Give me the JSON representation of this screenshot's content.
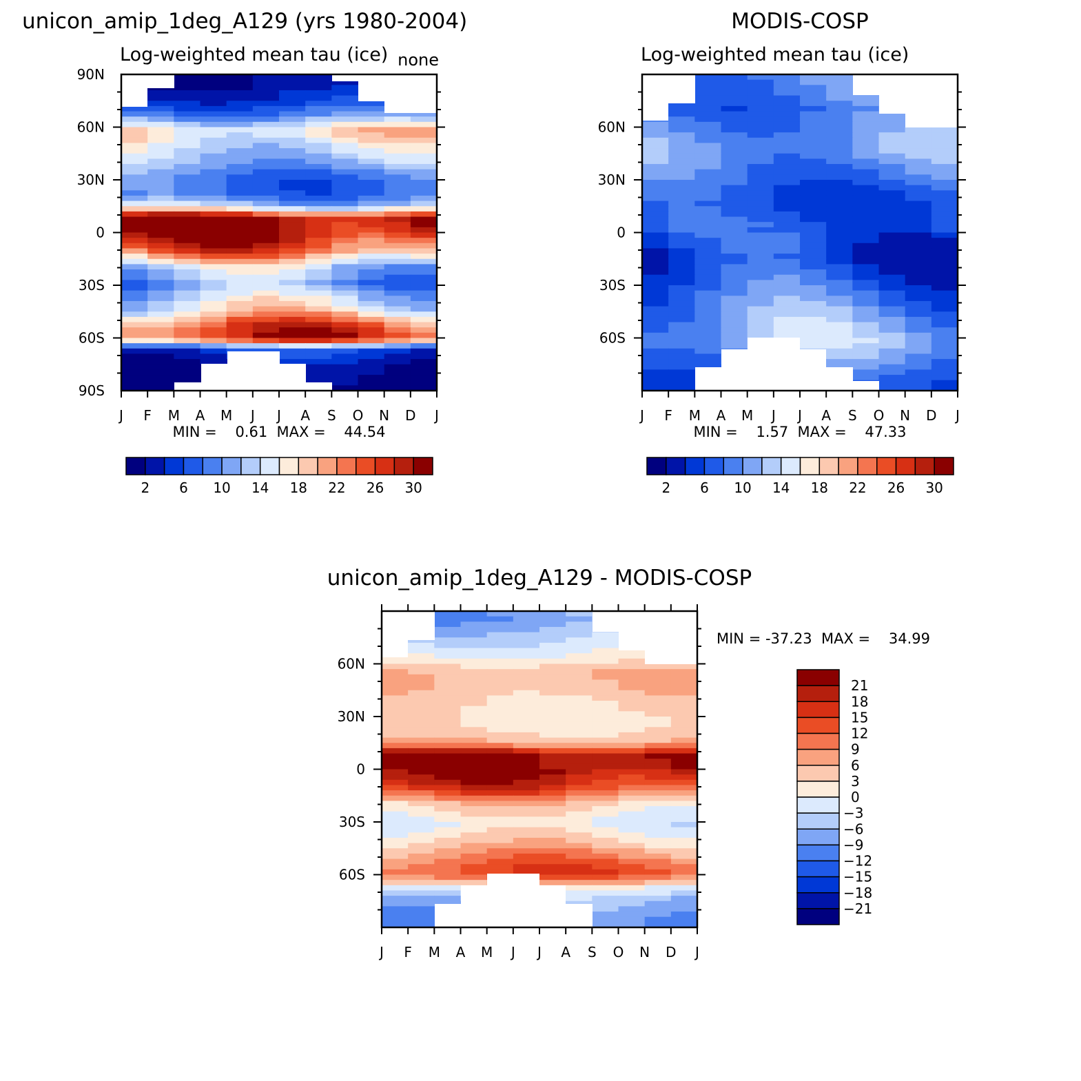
{
  "panels": {
    "model": {
      "title": "unicon_amip_1deg_A129 (yrs 1980-2004)",
      "subtitle": "Log-weighted mean tau (ice)",
      "corner_label": "none",
      "stats": "MIN =    0.61  MAX =    44.54"
    },
    "obs": {
      "title": "MODIS-COSP",
      "subtitle": "Log-weighted mean tau (ice)",
      "stats": "MIN =    1.57  MAX =    47.33"
    },
    "diff": {
      "title": "unicon_amip_1deg_A129 - MODIS-COSP",
      "stats": "MIN = -37.23  MAX =    34.99"
    }
  },
  "chart_data": [
    {
      "id": "model",
      "type": "heatmap",
      "title": "unicon_amip_1deg_A129 (yrs 1980-2004)",
      "subtitle": "Log-weighted mean tau (ice)",
      "x_ticks": [
        "J",
        "F",
        "M",
        "A",
        "M",
        "J",
        "J",
        "A",
        "S",
        "O",
        "N",
        "D",
        "J"
      ],
      "y_ticks": [
        "90N",
        "60N",
        "30N",
        "0",
        "30S",
        "60S",
        "90S"
      ],
      "ylim": [
        -90,
        90
      ],
      "min": 0.61,
      "max": 44.54,
      "legend": {
        "orientation": "horizontal",
        "labels": [
          "2",
          "6",
          "10",
          "14",
          "18",
          "22",
          "26",
          "30"
        ],
        "colors": [
          "#00007f",
          "#0014a8",
          "#0038d6",
          "#1f5ae8",
          "#4a80f0",
          "#7fa6f5",
          "#b3cdfa",
          "#dceafd",
          "#fdecdb",
          "#fcc9b0",
          "#f9a27f",
          "#f47550",
          "#ea4d25",
          "#d73014",
          "#b51f0d",
          "#8a0000"
        ]
      },
      "profile": [
        {
          "lat": -88,
          "v": 1
        },
        {
          "lat": -75,
          "v": 2
        },
        {
          "lat": -66,
          "v": 6
        },
        {
          "lat": -60,
          "v": 27
        },
        {
          "lat": -52,
          "v": 24
        },
        {
          "lat": -45,
          "v": 17
        },
        {
          "lat": -38,
          "v": 14
        },
        {
          "lat": -30,
          "v": 10
        },
        {
          "lat": -20,
          "v": 13
        },
        {
          "lat": -10,
          "v": 24
        },
        {
          "lat": 0,
          "v": 30
        },
        {
          "lat": 8,
          "v": 31
        },
        {
          "lat": 15,
          "v": 13
        },
        {
          "lat": 22,
          "v": 8
        },
        {
          "lat": 30,
          "v": 8
        },
        {
          "lat": 40,
          "v": 12
        },
        {
          "lat": 50,
          "v": 15
        },
        {
          "lat": 58,
          "v": 18
        },
        {
          "lat": 66,
          "v": 10
        },
        {
          "lat": 75,
          "v": 5
        },
        {
          "lat": 85,
          "v": 2
        }
      ]
    },
    {
      "id": "obs",
      "type": "heatmap",
      "title": "MODIS-COSP",
      "subtitle": "Log-weighted mean tau (ice)",
      "x_ticks": [
        "J",
        "F",
        "M",
        "A",
        "M",
        "J",
        "J",
        "A",
        "S",
        "O",
        "N",
        "D",
        "J"
      ],
      "y_ticks": [
        "60N",
        "30N",
        "0",
        "30S",
        "60S"
      ],
      "ylim": [
        -90,
        90
      ],
      "min": 1.57,
      "max": 47.33,
      "legend": {
        "orientation": "horizontal",
        "labels": [
          "2",
          "6",
          "10",
          "14",
          "18",
          "22",
          "26",
          "30"
        ],
        "colors": [
          "#00007f",
          "#0014a8",
          "#0038d6",
          "#1f5ae8",
          "#4a80f0",
          "#7fa6f5",
          "#b3cdfa",
          "#dceafd",
          "#fdecdb",
          "#fcc9b0",
          "#f9a27f",
          "#f47550",
          "#ea4d25",
          "#d73014",
          "#b51f0d",
          "#8a0000"
        ]
      },
      "profile": [
        {
          "lat": -85,
          "v": 6
        },
        {
          "lat": -75,
          "v": 9
        },
        {
          "lat": -62,
          "v": 12
        },
        {
          "lat": -52,
          "v": 11
        },
        {
          "lat": -40,
          "v": 9
        },
        {
          "lat": -28,
          "v": 7
        },
        {
          "lat": -15,
          "v": 5
        },
        {
          "lat": -5,
          "v": 6
        },
        {
          "lat": 5,
          "v": 7
        },
        {
          "lat": 15,
          "v": 6
        },
        {
          "lat": 25,
          "v": 7
        },
        {
          "lat": 35,
          "v": 9
        },
        {
          "lat": 48,
          "v": 11
        },
        {
          "lat": 58,
          "v": 10
        },
        {
          "lat": 70,
          "v": 8
        },
        {
          "lat": 80,
          "v": 9
        }
      ]
    },
    {
      "id": "diff",
      "type": "heatmap",
      "title": "unicon_amip_1deg_A129 - MODIS-COSP",
      "x_ticks": [
        "J",
        "F",
        "M",
        "A",
        "M",
        "J",
        "J",
        "A",
        "S",
        "O",
        "N",
        "D",
        "J"
      ],
      "y_ticks": [
        "60N",
        "30N",
        "0",
        "30S",
        "60S"
      ],
      "ylim": [
        -90,
        90
      ],
      "min": -37.23,
      "max": 34.99,
      "legend": {
        "orientation": "vertical",
        "labels": [
          "21",
          "18",
          "15",
          "12",
          "9",
          "6",
          "3",
          "0",
          "-3",
          "-6",
          "-9",
          "-12",
          "-15",
          "-18",
          "-21"
        ],
        "colors": [
          "#8a0000",
          "#b51f0d",
          "#d73014",
          "#ea4d25",
          "#f47550",
          "#f9a27f",
          "#fcc9b0",
          "#fdecdb",
          "#dceafd",
          "#b3cdfa",
          "#7fa6f5",
          "#4a80f0",
          "#1f5ae8",
          "#0038d6",
          "#0014a8",
          "#00007f"
        ]
      },
      "profile": [
        {
          "lat": -85,
          "v": -10
        },
        {
          "lat": -75,
          "v": -6
        },
        {
          "lat": -68,
          "v": 0
        },
        {
          "lat": -60,
          "v": 14
        },
        {
          "lat": -52,
          "v": 11
        },
        {
          "lat": -45,
          "v": 6
        },
        {
          "lat": -38,
          "v": 2
        },
        {
          "lat": -30,
          "v": -1
        },
        {
          "lat": -20,
          "v": 4
        },
        {
          "lat": -10,
          "v": 16
        },
        {
          "lat": 0,
          "v": 22
        },
        {
          "lat": 8,
          "v": 23
        },
        {
          "lat": 15,
          "v": 6
        },
        {
          "lat": 25,
          "v": 2
        },
        {
          "lat": 35,
          "v": 3
        },
        {
          "lat": 45,
          "v": 5
        },
        {
          "lat": 55,
          "v": 6
        },
        {
          "lat": 65,
          "v": 0
        },
        {
          "lat": 75,
          "v": -4
        },
        {
          "lat": 85,
          "v": -8
        }
      ]
    }
  ]
}
